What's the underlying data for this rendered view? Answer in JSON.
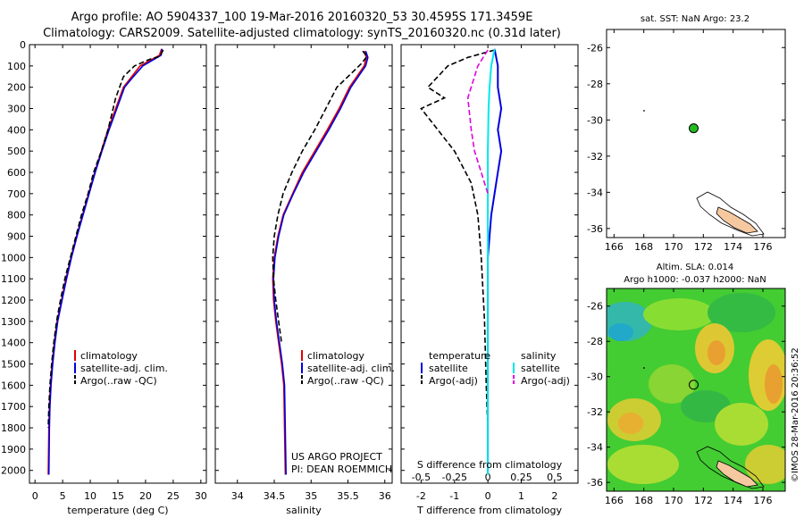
{
  "header": {
    "line1": "Argo profile: AO 5904337_100 19-Mar-2016 20160320_53 30.4595S 171.3459E",
    "line2": "Climatology: CARS2009. Satellite-adjusted climatology: synTS_20160320.nc (0.31d later)"
  },
  "colors": {
    "climatology": "#e00000",
    "satellite": "#0000e0",
    "argo": "#000000",
    "satellite_salinity": "#00e8e8",
    "argo_salinity_adj": "#e000e0",
    "land": "#f5c8a0"
  },
  "chart_data": [
    {
      "type": "line",
      "panel": "temperature",
      "xlabel": "temperature (deg C)",
      "xlim": [
        -1,
        31
      ],
      "ylim": [
        2060,
        0
      ],
      "x_ticks": [
        0,
        5,
        10,
        15,
        20,
        25,
        30
      ],
      "y_ticks": [
        0,
        100,
        200,
        300,
        400,
        500,
        600,
        700,
        800,
        900,
        1000,
        1100,
        1200,
        1300,
        1400,
        1500,
        1600,
        1700,
        1800,
        1900,
        2000
      ],
      "legend": [
        "climatology",
        "satellite-adj. clim.",
        "Argo(..raw -QC)"
      ],
      "series": [
        {
          "name": "climatology",
          "x": [
            22.9,
            22.5,
            19.0,
            17.5,
            16.0,
            14.6,
            13.2,
            12.0,
            10.8,
            9.7,
            8.6,
            7.5,
            6.5,
            5.6,
            4.8,
            4.0,
            3.5,
            3.1,
            2.8,
            2.6,
            2.5,
            2.4
          ],
          "y": [
            20,
            50,
            100,
            150,
            200,
            300,
            400,
            500,
            600,
            700,
            800,
            900,
            1000,
            1100,
            1200,
            1300,
            1400,
            1500,
            1600,
            1700,
            1800,
            2020
          ]
        },
        {
          "name": "satellite-adj. clim.",
          "x": [
            23.0,
            22.8,
            19.5,
            17.8,
            16.2,
            14.8,
            13.4,
            12.1,
            10.9,
            9.8,
            8.7,
            7.6,
            6.6,
            5.7,
            4.9,
            4.1,
            3.6,
            3.2,
            2.9,
            2.7,
            2.6,
            2.5
          ],
          "y": [
            20,
            50,
            100,
            150,
            200,
            300,
            400,
            500,
            600,
            700,
            800,
            900,
            1000,
            1100,
            1200,
            1300,
            1400,
            1500,
            1600,
            1700,
            1800,
            2020
          ]
        },
        {
          "name": "Argo(..raw -QC)",
          "x": [
            23.2,
            22.6,
            20.6,
            18.0,
            16.0,
            14.6,
            13.2,
            12.0,
            10.6,
            9.6,
            8.4,
            7.4,
            6.4,
            5.4,
            4.6,
            3.9,
            3.4,
            3.0,
            2.7,
            2.5,
            2.4
          ],
          "y": [
            25,
            55,
            70,
            100,
            150,
            250,
            400,
            500,
            600,
            700,
            800,
            900,
            1000,
            1100,
            1200,
            1300,
            1400,
            1500,
            1600,
            1700,
            1800
          ]
        }
      ]
    },
    {
      "type": "line",
      "panel": "salinity",
      "xlabel": "salinity",
      "xlim": [
        33.7,
        36.1
      ],
      "ylim": [
        2060,
        0
      ],
      "x_ticks": [
        34,
        34.5,
        35,
        35.5,
        36
      ],
      "legend": [
        "climatology",
        "satellite-adj. clim.",
        "Argo(..raw -QC)"
      ],
      "series": [
        {
          "name": "climatology",
          "x": [
            35.72,
            35.75,
            35.72,
            35.62,
            35.52,
            35.38,
            35.22,
            35.05,
            34.88,
            34.75,
            34.62,
            34.55,
            34.5,
            34.48,
            34.49,
            34.52,
            34.56,
            34.6,
            34.63,
            34.65
          ],
          "y": [
            30,
            60,
            100,
            150,
            200,
            300,
            400,
            500,
            600,
            700,
            800,
            900,
            1000,
            1100,
            1200,
            1300,
            1400,
            1500,
            1600,
            2020
          ]
        },
        {
          "name": "satellite-adj. clim.",
          "x": [
            35.74,
            35.77,
            35.74,
            35.64,
            35.54,
            35.4,
            35.24,
            35.07,
            34.9,
            34.76,
            34.63,
            34.56,
            34.51,
            34.49,
            34.5,
            34.53,
            34.57,
            34.61,
            34.64,
            34.66
          ],
          "y": [
            30,
            60,
            100,
            150,
            200,
            300,
            400,
            500,
            600,
            700,
            800,
            900,
            1000,
            1100,
            1200,
            1300,
            1400,
            1500,
            1600,
            2020
          ]
        },
        {
          "name": "Argo(..raw -QC)",
          "x": [
            35.7,
            35.76,
            35.68,
            35.5,
            35.35,
            35.2,
            35.05,
            34.88,
            34.74,
            34.62,
            34.55,
            34.5,
            34.48,
            34.49,
            34.52,
            34.56,
            34.6
          ],
          "y": [
            30,
            55,
            90,
            150,
            200,
            300,
            400,
            500,
            600,
            700,
            800,
            900,
            1000,
            1100,
            1200,
            1300,
            1400
          ]
        }
      ]
    },
    {
      "type": "line",
      "panel": "differences",
      "xlabel": "T difference from climatology",
      "xlabel_top": "S difference from climatology",
      "xlim": [
        -2.6,
        2.7
      ],
      "ylim": [
        2060,
        0
      ],
      "x_ticks_T": [
        -2,
        -1,
        0,
        1,
        2
      ],
      "x_ticks_S_labels": [
        "-0.5",
        "-0.25",
        "0",
        "0.25",
        "0.5"
      ],
      "x_ticks_S_positions": [
        -2,
        -1,
        0,
        1,
        2
      ],
      "legend_headers": [
        "temperature",
        "salinity"
      ],
      "legend": [
        "satellite",
        "Argo(-adj)",
        "satellite",
        "Argo(-adj)"
      ],
      "series": [
        {
          "name": "satellite",
          "group": "temperature",
          "x": [
            0.2,
            0.3,
            0.3,
            0.4,
            0.3,
            0.4,
            0.3,
            0.2,
            0.1,
            0.05,
            0.0,
            0.0,
            0.0,
            0.0
          ],
          "y": [
            20,
            100,
            200,
            300,
            400,
            500,
            600,
            700,
            800,
            900,
            1000,
            1300,
            1600,
            2020
          ]
        },
        {
          "name": "Argo(-adj)",
          "group": "temperature",
          "x": [
            0.2,
            -0.6,
            -1.2,
            -1.5,
            -1.8,
            -1.3,
            -2.0,
            -1.5,
            -1.0,
            -0.5,
            -0.3,
            -0.2,
            -0.1,
            -0.05,
            0.0
          ],
          "y": [
            25,
            60,
            100,
            150,
            200,
            250,
            300,
            400,
            500,
            650,
            800,
            1000,
            1300,
            1600,
            1800
          ]
        },
        {
          "name": "satellite",
          "group": "salinity",
          "x": [
            0.2,
            0.1,
            0.05,
            0.02,
            0.0,
            0.0,
            0.0,
            0.0,
            0.0,
            0.0
          ],
          "y": [
            20,
            100,
            200,
            300,
            500,
            700,
            900,
            1200,
            1600,
            2020
          ]
        },
        {
          "name": "Argo(-adj)",
          "group": "salinity",
          "x": [
            0.0,
            -0.3,
            -0.6,
            -0.5,
            -0.4,
            -0.2,
            0.0
          ],
          "y": [
            25,
            100,
            250,
            400,
            500,
            600,
            700
          ]
        }
      ]
    }
  ],
  "map_sst": {
    "title": "sat. SST: NaN Argo: 23.2",
    "x_ticks": [
      "166",
      "168",
      "170",
      "172",
      "174",
      "176"
    ],
    "y_ticks": [
      "-26",
      "-28",
      "-30",
      "-32",
      "-34",
      "-36"
    ],
    "xlim": [
      165.5,
      177.5
    ],
    "ylim": [
      -36.5,
      -25
    ]
  },
  "map_sla": {
    "title1": "Altim. SLA: 0.014",
    "title2": "Argo h1000: -0.037 h2000: NaN",
    "x_ticks": [
      "166",
      "168",
      "170",
      "172",
      "174",
      "176"
    ],
    "y_ticks": [
      "-26",
      "-28",
      "-30",
      "-32",
      "-34",
      "-36"
    ],
    "xlim": [
      165.5,
      177.5
    ],
    "ylim": [
      -36.5,
      -25
    ]
  },
  "argo_location": {
    "lon": 171.35,
    "lat": -30.46
  },
  "credits": {
    "line1": "US ARGO PROJECT",
    "line2": "PI: DEAN ROEMMICH",
    "watermark": "©IMOS 28-Mar-2016 20:36:52"
  }
}
